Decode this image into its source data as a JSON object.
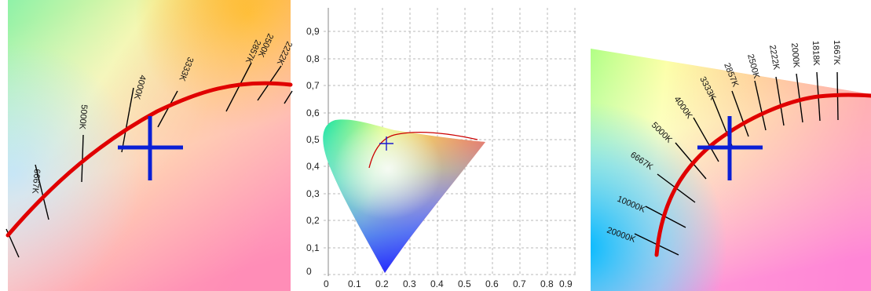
{
  "colors": {
    "locus": "#e00000",
    "marker": "#0a1fd6",
    "grid": "#b9b9b9",
    "isotemp": "#000000"
  },
  "left_panel": {
    "labels": [
      "6667K",
      "5000K",
      "4000K",
      "3333K",
      "2857K",
      "2500K",
      "2222K"
    ]
  },
  "middle_panel": {
    "y_ticks": [
      "0,9",
      "0,8",
      "0,7",
      "0,6",
      "0,5",
      "0,4",
      "0,3",
      "0,2",
      "0,1",
      "0"
    ],
    "x_ticks": [
      "0",
      "0.1",
      "0.2",
      "0.3",
      "0.4",
      "0.5",
      "0.6",
      "0.7",
      "0.8",
      "0.9"
    ]
  },
  "right_panel": {
    "labels": [
      "20000K",
      "10000K",
      "6667K",
      "5000K",
      "4000K",
      "3333K",
      "2857K",
      "2500K",
      "2222K",
      "2000K",
      "1818K",
      "1667K"
    ]
  }
}
